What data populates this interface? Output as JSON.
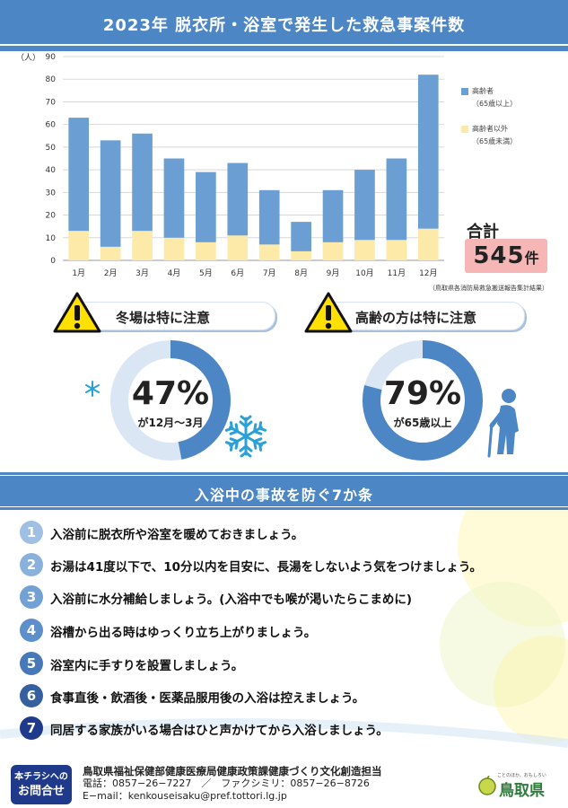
{
  "header": {
    "title": "2023年 脱衣所・浴室で発生した救急事案件数"
  },
  "chart_data": {
    "type": "bar",
    "stacked": true,
    "title": "2023年 脱衣所・浴室で発生した救急事案件数",
    "ylabel": "（人）",
    "ylim": [
      0,
      90
    ],
    "yticks": [
      "0",
      "10",
      "20",
      "30",
      "40",
      "50",
      "60",
      "70",
      "80",
      "90"
    ],
    "grid": true,
    "legend_position": "right",
    "categories": [
      "1月",
      "2月",
      "3月",
      "4月",
      "5月",
      "6月",
      "7月",
      "8月",
      "9月",
      "10月",
      "11月",
      "12月"
    ],
    "series": [
      {
        "name": "高齢者以外（65歳未満）",
        "color": "#fde9a8",
        "values": [
          13,
          6,
          13,
          10,
          8,
          11,
          7,
          4,
          8,
          9,
          9,
          14
        ]
      },
      {
        "name": "高齢者（65歳以上）",
        "color": "#6b9fd4",
        "values": [
          50,
          47,
          43,
          35,
          31,
          32,
          24,
          13,
          23,
          31,
          36,
          68
        ]
      }
    ]
  },
  "legend": {
    "elderly": {
      "line1": "高齢者",
      "line2": "（65歳以上）",
      "color": "#6b9fd4"
    },
    "nonelderly": {
      "line1": "高齢者以外",
      "line2": "（65歳未満）",
      "color": "#fde9a8"
    }
  },
  "total": {
    "label": "合計",
    "value": "545",
    "unit": "件"
  },
  "source": "（鳥取県各消防局救急搬送報告集計結果）",
  "cards": [
    {
      "title": "冬場は特に注意",
      "percent": "47%",
      "caption": "が12月～3月",
      "value": 0.47
    },
    {
      "title": "高齢の方は特に注意",
      "percent": "79%",
      "caption": "が65歳以上",
      "value": 0.79
    }
  ],
  "section": {
    "title": "入浴中の事故を防ぐ7か条"
  },
  "tips": [
    {
      "num": "1",
      "text": "入浴前に脱衣所や浴室を暖めておきましょう。"
    },
    {
      "num": "2",
      "text": "お湯は41度以下で、10分以内を目安に、長湯をしないよう気をつけましょう。"
    },
    {
      "num": "3",
      "text": "入浴前に水分補給しましょう。(入浴中でも喉が渇いたらこまめに)"
    },
    {
      "num": "4",
      "text": "浴槽から出る時はゆっくり立ち上がりましょう。"
    },
    {
      "num": "5",
      "text": "浴室内に手すりを設置しましょう。"
    },
    {
      "num": "6",
      "text": "食事直後・飲酒後・医薬品服用後の入浴は控えましょう。"
    },
    {
      "num": "7",
      "text": "同居する家族がいる場合はひと声かけてから入浴しましょう。"
    }
  ],
  "colors": {
    "primary": "#4d86c5",
    "dark": "#1f3a8a",
    "light_num": "#9fbfe3",
    "ring_track": "#dbe6f5",
    "ring_fill": "#4d86c5"
  },
  "footer": {
    "badge_line1": "本チラシへの",
    "badge_line2": "お問合せ",
    "department": "鳥取県福祉保健部健康医療局健康政策課健康づくり文化創造担当",
    "phone_fax": "電話：0857−26−7227　／　ファクシミリ：0857−26−8726",
    "email": "E−mail：kenkouseisaku@pref.tottori.lg.jp",
    "logo_tag": "ことのほか、おもしろい",
    "logo_name": "鳥取県"
  }
}
